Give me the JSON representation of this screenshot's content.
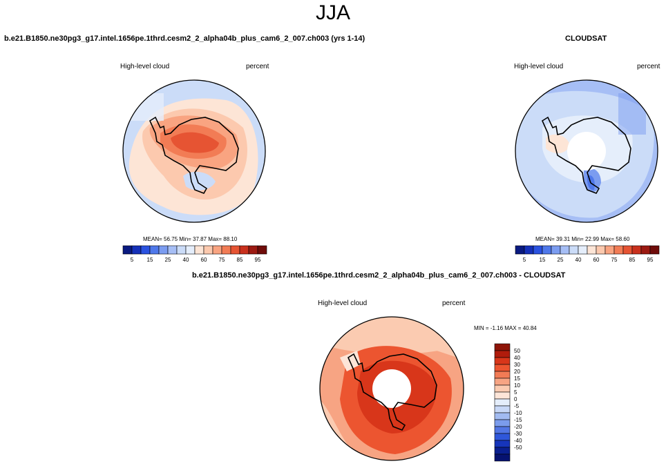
{
  "season": "JJA",
  "colors": {
    "seq": [
      "#0a1a80",
      "#1530b8",
      "#2a52e0",
      "#4f78ea",
      "#7b9cf0",
      "#a6bef5",
      "#cbdcf8",
      "#e5eefb",
      "#fde5d6",
      "#fcc9ae",
      "#f9a481",
      "#f27c55",
      "#e65433",
      "#c9301d",
      "#9c1a12",
      "#6f0c0a"
    ],
    "diff": [
      "#8e1408",
      "#b01c0c",
      "#d8361a",
      "#ec5530",
      "#f27b55",
      "#f7a483",
      "#fbcbb1",
      "#fde5d8",
      "#e5eefb",
      "#c8d8f7",
      "#a2bbf1",
      "#7b9cec",
      "#5276e4",
      "#2f57da",
      "#1635bb",
      "#0a1f8f",
      "#061270"
    ]
  },
  "panels": {
    "model": {
      "title": "b.e21.B1850.ne30pg3_g17.intel.1656pe.1thrd.cesm2_2_alpha04b_plus_cam6_2_007.ch003 (yrs 1-14)",
      "variable": "High-level cloud",
      "units": "percent",
      "stats": "MEAN=  56.75  Min=  37.87  Max=  88.10"
    },
    "obs": {
      "title": "CLOUDSAT",
      "variable": "High-level cloud",
      "units": "percent",
      "stats": "MEAN=  39.31  Min=  22.99  Max=  58.60"
    },
    "diff": {
      "title": "b.e21.B1850.ne30pg3_g17.intel.1656pe.1thrd.cesm2_2_alpha04b_plus_cam6_2_007.ch003 - CLOUDSAT",
      "variable": "High-level cloud",
      "units": "percent",
      "stats": "MIN =  -1.16 MAX =  40.84"
    }
  },
  "colorbar_labels": [
    "5",
    "15",
    "25",
    "40",
    "60",
    "75",
    "85",
    "95"
  ],
  "diff_colorbar_labels": [
    "50",
    "40",
    "30",
    "20",
    "15",
    "10",
    "5",
    "0",
    "-5",
    "-10",
    "-15",
    "-20",
    "-30",
    "-40",
    "-50"
  ]
}
